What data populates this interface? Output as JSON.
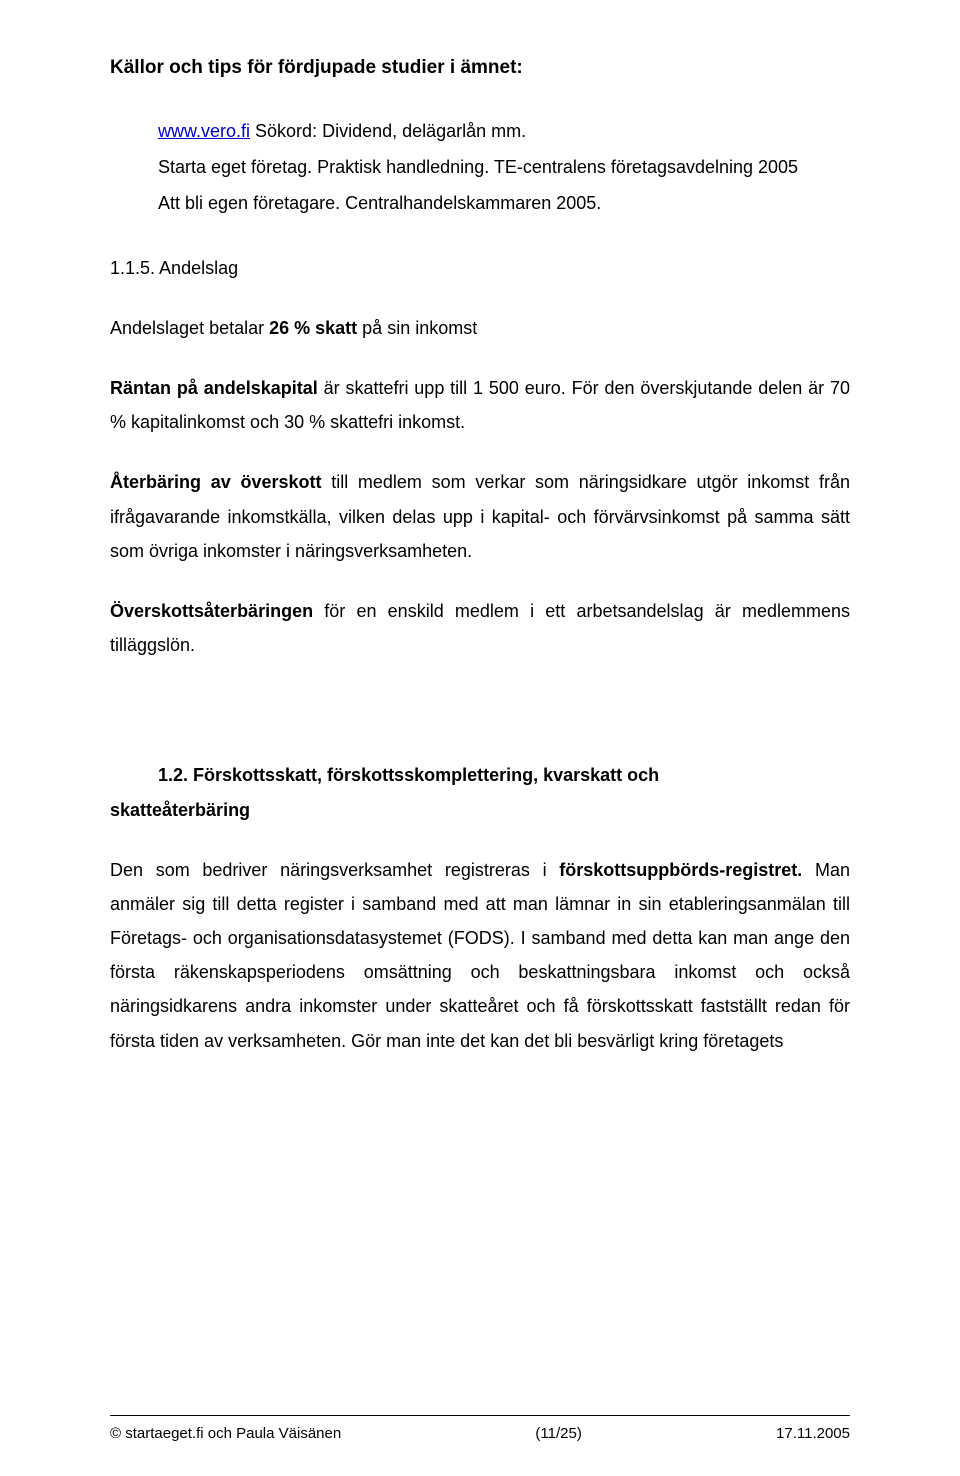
{
  "heading": "Källor och tips för fördjupade studier i ämnet:",
  "sources": {
    "line1_link": "www.vero.fi",
    "line1_rest": "   Sökord: Dividend, delägarlån mm.",
    "line2": "Starta eget företag. Praktisk handledning. TE-centralens företagsavdelning 2005",
    "line3": "Att bli egen företagare. Centralhandelskammaren 2005."
  },
  "sub1": {
    "num": "1.1.5.   ",
    "title": "Andelslag"
  },
  "para1": {
    "t1": "Andelslaget betalar ",
    "b1": "26 % skatt",
    "t2": " på sin inkomst"
  },
  "para2": {
    "b1": "Räntan på andelskapital",
    "t1": " är skattefri upp till 1 500 euro. För den överskjutande delen är 70 % kapitalinkomst och 30 % skattefri inkomst."
  },
  "para3": {
    "b1": "Återbäring av överskott",
    "t1": " till medlem som verkar som näringsidkare utgör inkomst från ifrågavarande inkomstkälla, vilken delas upp i kapital- och förvärvsinkomst på samma sätt som övriga inkomster i näringsverksamheten."
  },
  "para4": {
    "b1": "Överskottsåterbäringen",
    "t1": " för en enskild medlem i ett arbetsandelslag är medlemmens tilläggslön."
  },
  "sub2": {
    "line1": "1.2.      Förskottsskatt, förskottsskomplettering, kvarskatt och",
    "line2": "skatteåterbäring"
  },
  "para5": {
    "t1": "Den som bedriver näringsverksamhet registreras i ",
    "b1": "förskottsuppbörds-registret.",
    "t2": " Man anmäler sig till detta register i samband med att man lämnar in sin etableringsanmälan till Företags- och organisationsdatasystemet (FODS). I samband med detta kan man ange den första räkenskapsperiodens omsättning och beskattningsbara inkomst och också näringsidkarens andra inkomster under skatteåret och få förskottsskatt fastställt redan för första tiden av verksamheten. Gör man inte det kan det bli besvärligt kring företagets"
  },
  "footer": {
    "left": "© startaeget.fi och Paula Väisänen",
    "center": "(11/25)",
    "right": "17.11.2005"
  }
}
